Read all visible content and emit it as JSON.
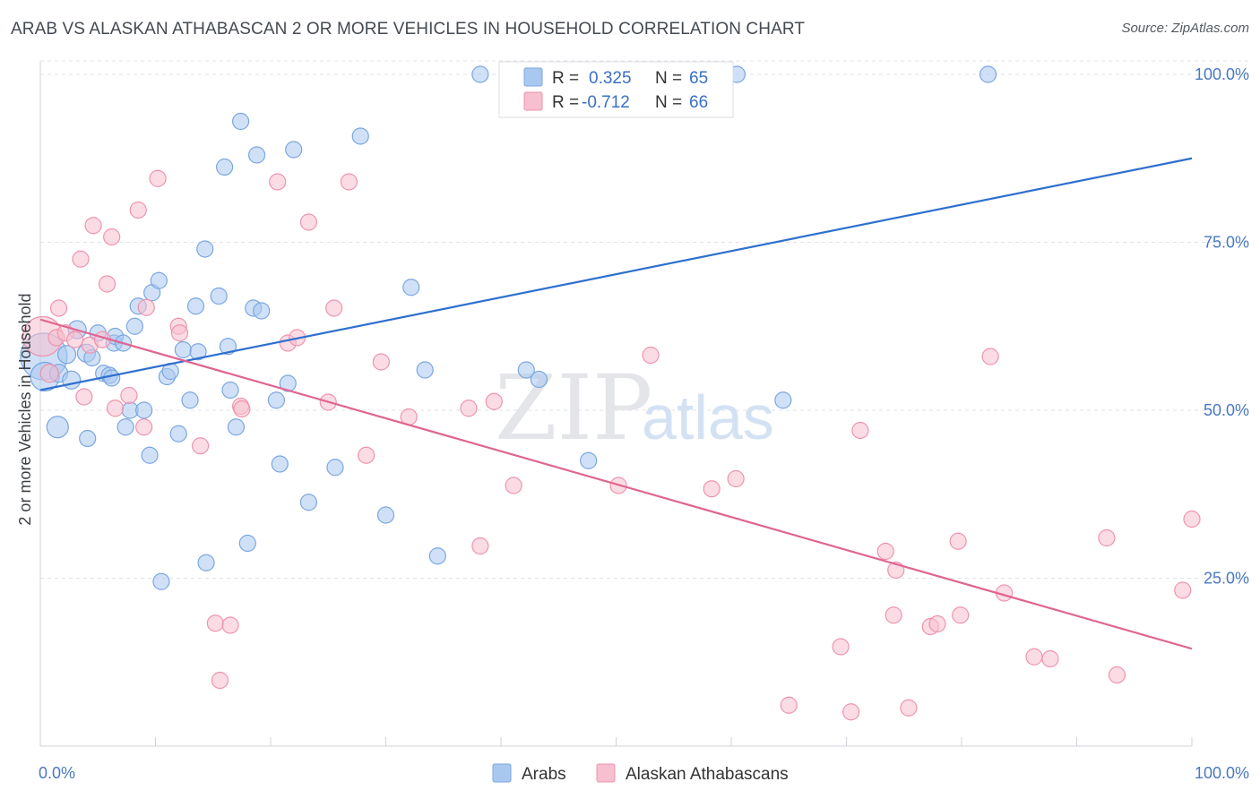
{
  "title": "ARAB VS ALASKAN ATHABASCAN 2 OR MORE VEHICLES IN HOUSEHOLD CORRELATION CHART",
  "source": "Source: ZipAtlas.com",
  "watermark": {
    "zip": "ZIP",
    "atlas": "atlas"
  },
  "stats": {
    "r_label": "R =",
    "n_label": "N =",
    "arab": {
      "r": "0.325",
      "n": "65",
      "color": "#a9c8f0",
      "stroke": "#7aa6e0"
    },
    "alaskan": {
      "r": "-0.712",
      "n": "66",
      "color": "#f7bfcf",
      "stroke": "#ee93ad"
    }
  },
  "chart_data": {
    "type": "scatter",
    "title": "ARAB VS ALASKAN ATHABASCAN 2 OR MORE VEHICLES IN HOUSEHOLD CORRELATION CHART",
    "xlabel": "",
    "ylabel": "2 or more Vehicles in Household",
    "xlim": [
      0,
      100
    ],
    "ylim": [
      0,
      102
    ],
    "x_tick_labels": [
      "0.0%",
      "100.0%"
    ],
    "y_tick_labels": [
      "25.0%",
      "50.0%",
      "75.0%",
      "100.0%"
    ],
    "y_ticks": [
      25,
      50,
      75,
      100
    ],
    "grid": true,
    "legend_position": "bottom",
    "series": [
      {
        "name": "Arabs",
        "color": "#a9c8f0",
        "stroke": "#7aa6e0",
        "line_color": "#2f6fcf",
        "trend": [
          [
            0,
            53
          ],
          [
            100,
            87.5
          ]
        ],
        "points": [
          [
            0.3,
            58,
            26
          ],
          [
            0.4,
            55,
            16
          ],
          [
            1.5,
            47.5,
            12
          ],
          [
            1.6,
            55.5,
            10
          ],
          [
            2.3,
            58.3,
            10
          ],
          [
            2.7,
            54.5,
            10
          ],
          [
            3.2,
            62,
            10
          ],
          [
            4.0,
            58.5,
            10
          ],
          [
            4.1,
            45.8,
            9
          ],
          [
            4.5,
            57.8,
            9
          ],
          [
            5.0,
            61.5,
            9
          ],
          [
            5.5,
            55.5,
            9
          ],
          [
            6.0,
            55.2,
            9
          ],
          [
            6.2,
            54.8,
            9
          ],
          [
            6.4,
            60,
            9
          ],
          [
            6.5,
            61,
            9
          ],
          [
            7.2,
            60,
            9
          ],
          [
            7.4,
            47.5,
            9
          ],
          [
            7.8,
            50,
            9
          ],
          [
            8.2,
            62.5,
            9
          ],
          [
            8.5,
            65.5,
            9
          ],
          [
            9.0,
            50,
            9
          ],
          [
            9.5,
            43.3,
            9
          ],
          [
            9.7,
            67.5,
            9
          ],
          [
            10.3,
            69.3,
            9
          ],
          [
            10.5,
            24.5,
            9
          ],
          [
            11.0,
            55,
            9
          ],
          [
            11.3,
            55.8,
            9
          ],
          [
            12.0,
            46.5,
            9
          ],
          [
            12.4,
            59,
            9
          ],
          [
            13.0,
            51.5,
            9
          ],
          [
            13.5,
            65.5,
            9
          ],
          [
            13.7,
            58.7,
            9
          ],
          [
            14.3,
            74,
            9
          ],
          [
            14.4,
            27.3,
            9
          ],
          [
            15.5,
            67,
            9
          ],
          [
            16.0,
            86.2,
            9
          ],
          [
            16.3,
            59.5,
            9
          ],
          [
            16.5,
            53,
            9
          ],
          [
            17.0,
            47.5,
            9
          ],
          [
            17.4,
            93,
            9
          ],
          [
            18.0,
            30.2,
            9
          ],
          [
            18.5,
            65.2,
            9
          ],
          [
            18.8,
            88,
            9
          ],
          [
            19.2,
            64.8,
            9
          ],
          [
            20.5,
            51.5,
            9
          ],
          [
            20.8,
            42,
            9
          ],
          [
            21.5,
            54,
            9
          ],
          [
            22.0,
            88.8,
            9
          ],
          [
            23.3,
            36.3,
            9
          ],
          [
            25.6,
            41.5,
            9
          ],
          [
            27.8,
            90.8,
            9
          ],
          [
            30.0,
            34.4,
            9
          ],
          [
            32.2,
            68.3,
            9
          ],
          [
            33.4,
            56,
            9
          ],
          [
            34.5,
            28.3,
            9
          ],
          [
            38.2,
            100,
            9
          ],
          [
            42.2,
            56,
            9
          ],
          [
            43.3,
            54.6,
            9
          ],
          [
            47.6,
            42.5,
            9
          ],
          [
            48.5,
            100,
            9
          ],
          [
            60.5,
            100,
            9
          ],
          [
            64.5,
            51.5,
            9
          ],
          [
            82.3,
            100,
            9
          ]
        ]
      },
      {
        "name": "Alaskan Athabascans",
        "color": "#f7bfcf",
        "stroke": "#ee93ad",
        "line_color": "#e0648f",
        "trend": [
          [
            0,
            63.5
          ],
          [
            100,
            14.5
          ]
        ],
        "points": [
          [
            0.2,
            61,
            22
          ],
          [
            0.8,
            55.5,
            10
          ],
          [
            1.4,
            60.8,
            9
          ],
          [
            1.6,
            65.2,
            9
          ],
          [
            2.2,
            61.5,
            9
          ],
          [
            3.0,
            60.5,
            9
          ],
          [
            3.5,
            72.5,
            9
          ],
          [
            3.8,
            52,
            9
          ],
          [
            4.3,
            59.7,
            9
          ],
          [
            4.6,
            77.5,
            9
          ],
          [
            5.4,
            60.5,
            9
          ],
          [
            5.8,
            68.8,
            9
          ],
          [
            6.2,
            75.8,
            9
          ],
          [
            6.5,
            50.3,
            9
          ],
          [
            7.7,
            52.2,
            9
          ],
          [
            8.5,
            79.8,
            9
          ],
          [
            9.0,
            47.5,
            9
          ],
          [
            9.2,
            65.3,
            9
          ],
          [
            10.2,
            84.5,
            9
          ],
          [
            12.0,
            62.5,
            9
          ],
          [
            12.1,
            61.5,
            9
          ],
          [
            13.9,
            44.7,
            9
          ],
          [
            15.2,
            18.3,
            9
          ],
          [
            15.6,
            9.8,
            9
          ],
          [
            16.5,
            18,
            9
          ],
          [
            17.4,
            50.6,
            9
          ],
          [
            17.5,
            50.2,
            9
          ],
          [
            20.6,
            84,
            9
          ],
          [
            21.5,
            60,
            9
          ],
          [
            22.3,
            60.8,
            9
          ],
          [
            23.3,
            78,
            9
          ],
          [
            25.0,
            51.2,
            9
          ],
          [
            25.5,
            65.2,
            9
          ],
          [
            26.8,
            84,
            9
          ],
          [
            28.3,
            43.3,
            9
          ],
          [
            29.6,
            57.2,
            9
          ],
          [
            32.0,
            49,
            9
          ],
          [
            37.2,
            50.3,
            9
          ],
          [
            38.2,
            29.8,
            9
          ],
          [
            39.4,
            51.3,
            9
          ],
          [
            41.1,
            38.8,
            9
          ],
          [
            50.2,
            38.8,
            9
          ],
          [
            53.0,
            58.2,
            9
          ],
          [
            58.3,
            38.3,
            9
          ],
          [
            60.4,
            39.8,
            9
          ],
          [
            65.0,
            6.1,
            9
          ],
          [
            69.5,
            14.8,
            9
          ],
          [
            70.4,
            5.1,
            9
          ],
          [
            71.2,
            47,
            9
          ],
          [
            73.4,
            29,
            9
          ],
          [
            74.1,
            19.5,
            9
          ],
          [
            74.3,
            26.2,
            9
          ],
          [
            75.4,
            5.7,
            9
          ],
          [
            77.3,
            17.8,
            9
          ],
          [
            77.9,
            18.2,
            9
          ],
          [
            79.7,
            30.5,
            9
          ],
          [
            79.9,
            19.5,
            9
          ],
          [
            82.5,
            58,
            9
          ],
          [
            83.7,
            22.8,
            9
          ],
          [
            86.3,
            13.3,
            9
          ],
          [
            87.7,
            13,
            9
          ],
          [
            92.6,
            31,
            9
          ],
          [
            93.5,
            10.6,
            9
          ],
          [
            99.2,
            23.2,
            9
          ],
          [
            100.0,
            33.8,
            9
          ]
        ]
      }
    ]
  }
}
